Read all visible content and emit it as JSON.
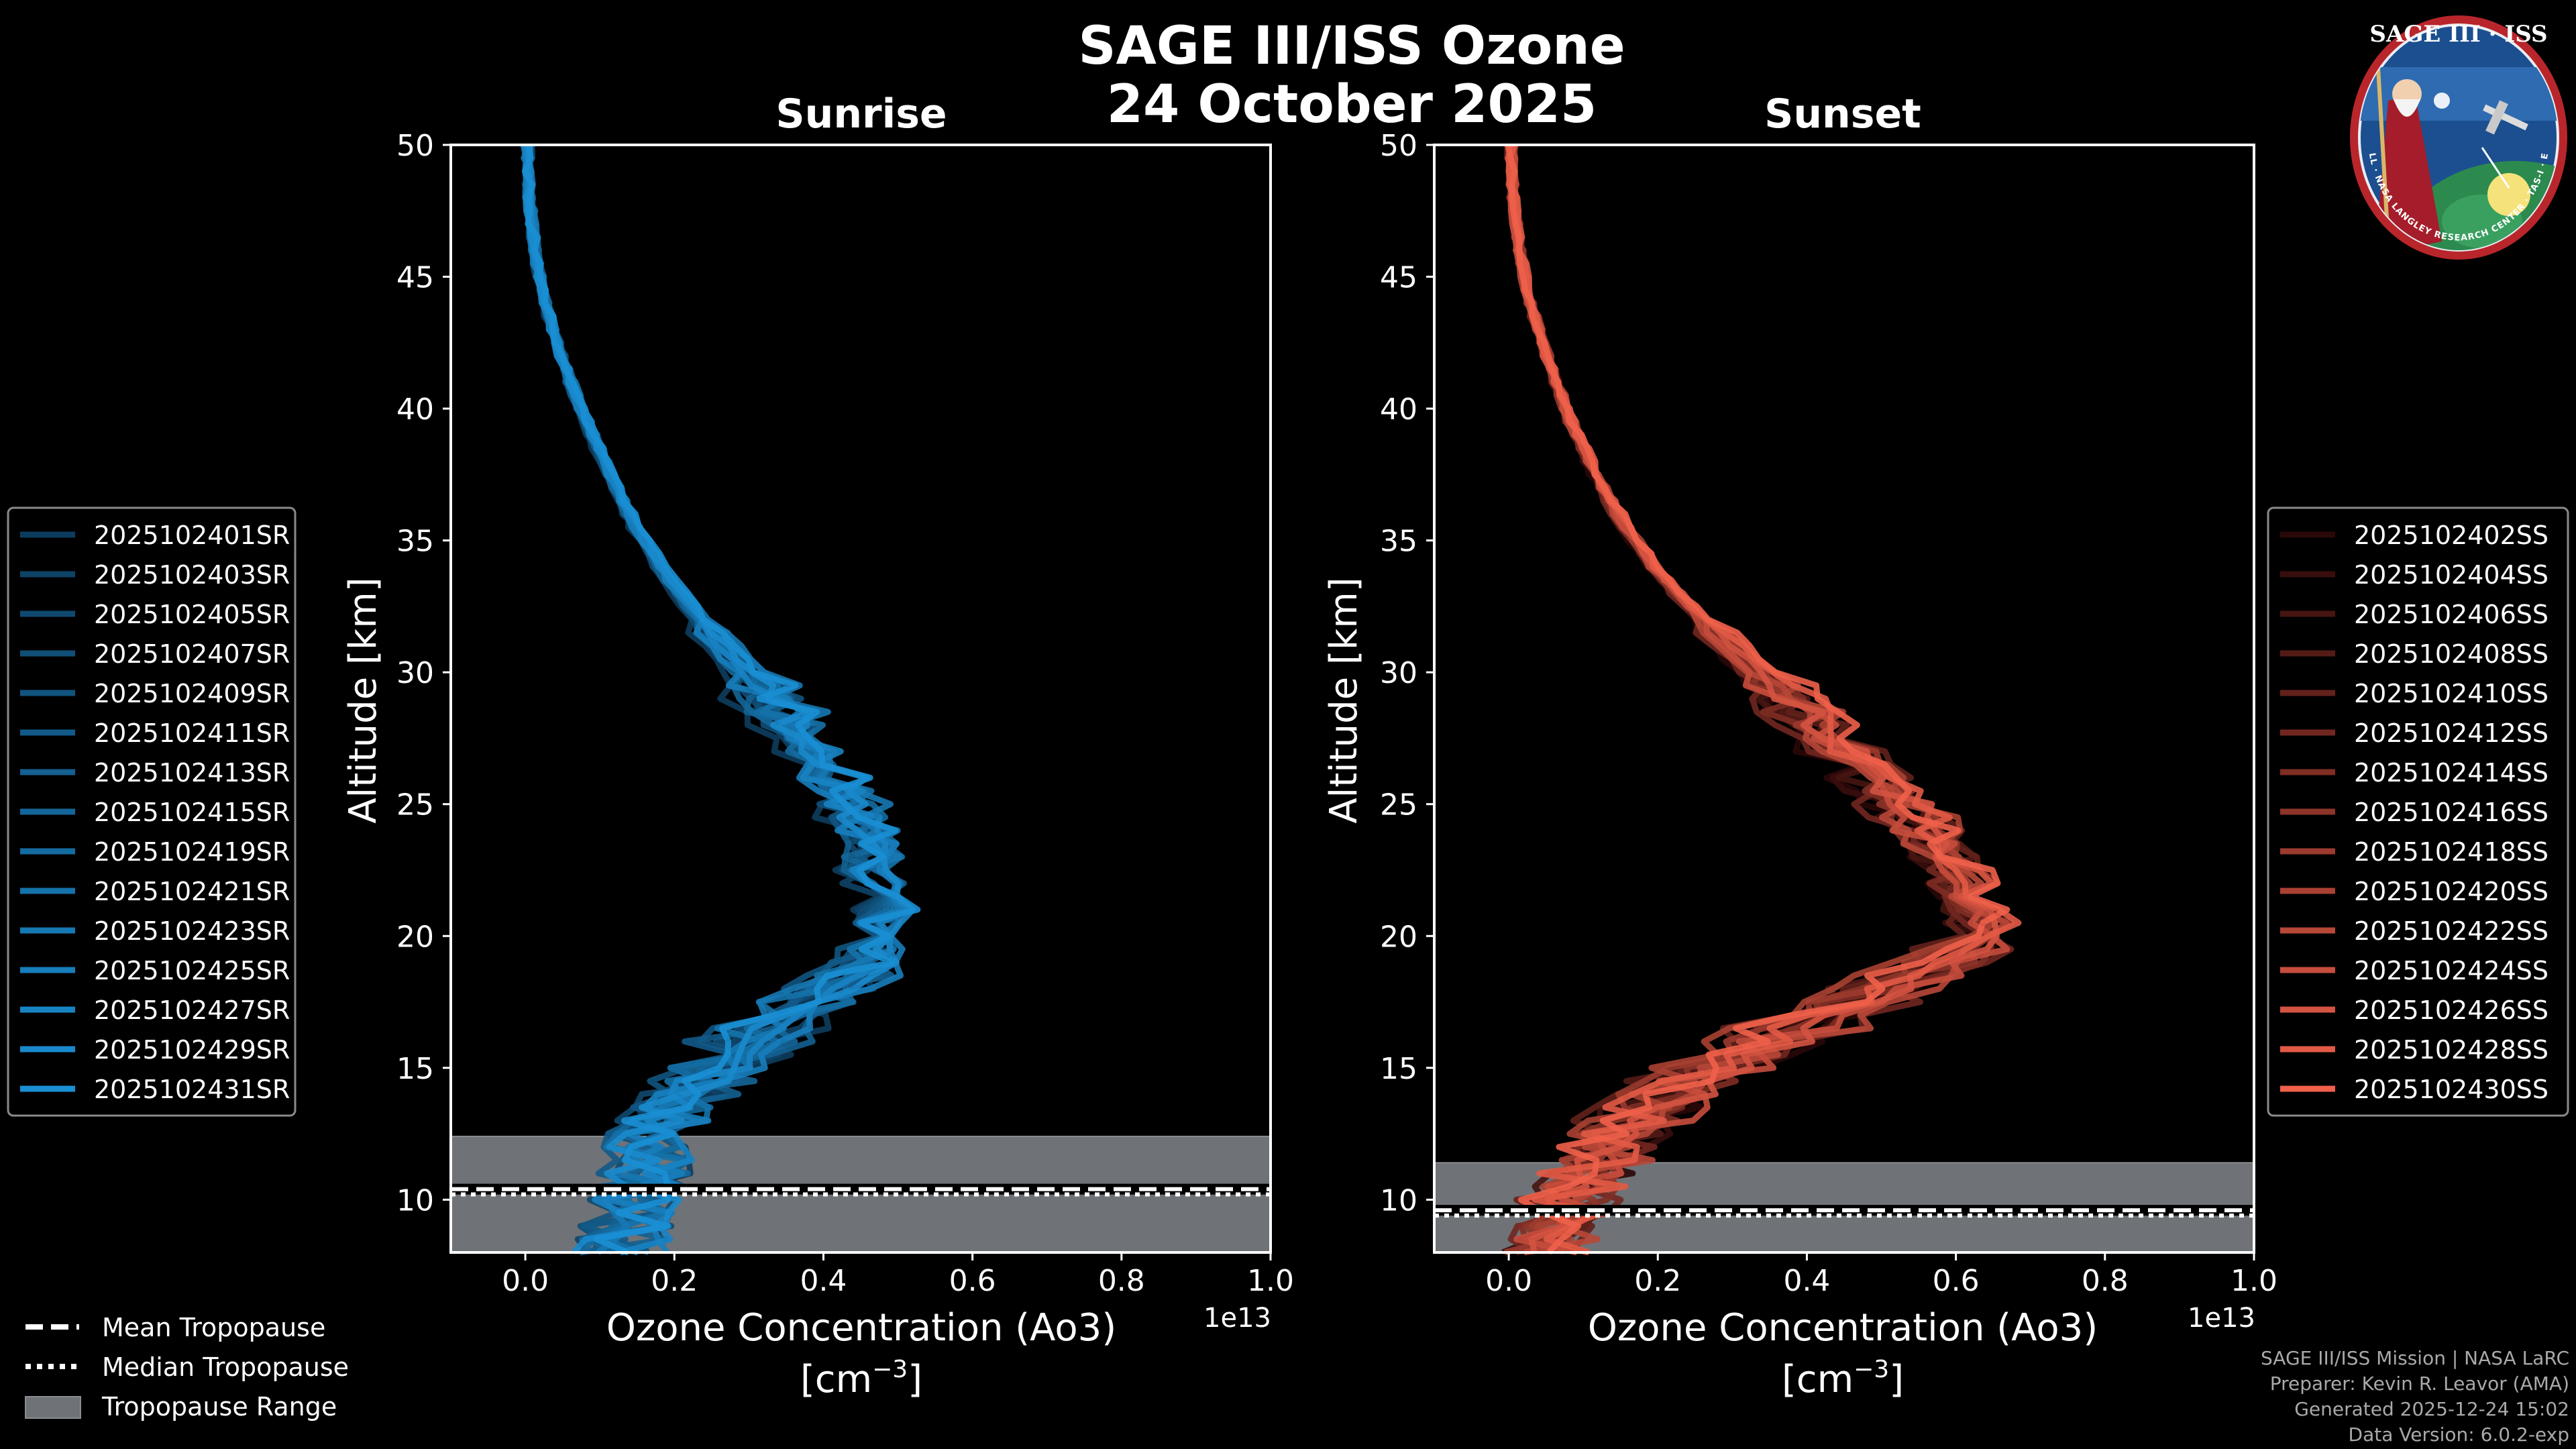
{
  "page": {
    "title_line1": "SAGE III/ISS Ozone",
    "title_line2": "24 October 2025",
    "logo": {
      "top_text": "SAGE III · ISS",
      "ring_text": "BALL · NASA LANGLEY RESEARCH CENTER · TAS-I · ESA",
      "icon": "sage-iii-iss-mission-patch"
    },
    "legend_bottom": [
      "Mean Tropopause",
      "Median Tropopause",
      "Tropopause Range"
    ],
    "credits": [
      "SAGE III/ISS Mission | NASA LaRC",
      "Preparer: Kevin R. Leavor (AMA)",
      "Generated 2025-12-24 15:02",
      "Data Version: 6.0.2-exp"
    ]
  },
  "chart_data": [
    {
      "type": "line",
      "title": "Sunrise",
      "xlabel": "Ozone Concentration (Ao3)",
      "xlabel_units": "[cm^-3]",
      "xunit_text": "[cm",
      "xunit_exp": "−3",
      "xunit_close": "]",
      "ylabel": "Altitude [km]",
      "xlim": [
        -0.1,
        1.0
      ],
      "ylim": [
        8,
        50
      ],
      "x_scale_label": "1e13",
      "xticks": [
        0.0,
        0.2,
        0.4,
        0.6,
        0.8,
        1.0
      ],
      "xtick_labels": [
        "0.0",
        "0.2",
        "0.4",
        "0.6",
        "0.8",
        "1.0"
      ],
      "yticks": [
        10,
        15,
        20,
        25,
        30,
        35,
        40,
        45,
        50
      ],
      "ytick_labels": [
        "10",
        "15",
        "20",
        "25",
        "30",
        "35",
        "40",
        "45",
        "50"
      ],
      "legend_position": "left",
      "series_color_dark": "#0d3d5e",
      "series_color_light": "#1a8fd4",
      "tropopause": {
        "range": [
          8.0,
          12.4
        ],
        "mean": 10.4,
        "median": 10.2,
        "fill": "#6f7276"
      },
      "mean_profile": [
        [
          50,
          0.003
        ],
        [
          48,
          0.005
        ],
        [
          46,
          0.012
        ],
        [
          44,
          0.025
        ],
        [
          42,
          0.045
        ],
        [
          40,
          0.07
        ],
        [
          38,
          0.1
        ],
        [
          36,
          0.13
        ],
        [
          34,
          0.17
        ],
        [
          32,
          0.22
        ],
        [
          30,
          0.28
        ],
        [
          28,
          0.34
        ],
        [
          26,
          0.39
        ],
        [
          24,
          0.43
        ],
        [
          22,
          0.45
        ],
        [
          20,
          0.45
        ],
        [
          19,
          0.43
        ],
        [
          18,
          0.38
        ],
        [
          17,
          0.33
        ],
        [
          16,
          0.28
        ],
        [
          15,
          0.24
        ],
        [
          14,
          0.2
        ],
        [
          13,
          0.17
        ],
        [
          12,
          0.16
        ],
        [
          11,
          0.15
        ],
        [
          10,
          0.14
        ],
        [
          9,
          0.13
        ],
        [
          8,
          0.1
        ]
      ],
      "series": [
        {
          "name": "2025102401SR"
        },
        {
          "name": "2025102403SR"
        },
        {
          "name": "2025102405SR"
        },
        {
          "name": "2025102407SR"
        },
        {
          "name": "2025102409SR"
        },
        {
          "name": "2025102411SR"
        },
        {
          "name": "2025102413SR"
        },
        {
          "name": "2025102415SR"
        },
        {
          "name": "2025102419SR"
        },
        {
          "name": "2025102421SR"
        },
        {
          "name": "2025102423SR"
        },
        {
          "name": "2025102425SR"
        },
        {
          "name": "2025102427SR"
        },
        {
          "name": "2025102429SR"
        },
        {
          "name": "2025102431SR"
        }
      ]
    },
    {
      "type": "line",
      "title": "Sunset",
      "xlabel": "Ozone Concentration (Ao3)",
      "xlabel_units": "[cm^-3]",
      "xunit_text": "[cm",
      "xunit_exp": "−3",
      "xunit_close": "]",
      "ylabel": "Altitude [km]",
      "xlim": [
        -0.1,
        1.0
      ],
      "ylim": [
        8,
        50
      ],
      "x_scale_label": "1e13",
      "xticks": [
        0.0,
        0.2,
        0.4,
        0.6,
        0.8,
        1.0
      ],
      "xtick_labels": [
        "0.0",
        "0.2",
        "0.4",
        "0.6",
        "0.8",
        "1.0"
      ],
      "yticks": [
        10,
        15,
        20,
        25,
        30,
        35,
        40,
        45,
        50
      ],
      "ytick_labels": [
        "10",
        "15",
        "20",
        "25",
        "30",
        "35",
        "40",
        "45",
        "50"
      ],
      "legend_position": "right",
      "series_color_dark": "#2a0808",
      "series_color_light": "#f0604a",
      "tropopause": {
        "range": [
          8.0,
          11.4
        ],
        "mean": 9.6,
        "median": 9.4,
        "fill": "#6f7276"
      },
      "mean_profile": [
        [
          50,
          0.003
        ],
        [
          48,
          0.006
        ],
        [
          46,
          0.013
        ],
        [
          44,
          0.027
        ],
        [
          42,
          0.047
        ],
        [
          40,
          0.07
        ],
        [
          38,
          0.1
        ],
        [
          36,
          0.135
        ],
        [
          34,
          0.18
        ],
        [
          32,
          0.24
        ],
        [
          30,
          0.31
        ],
        [
          28,
          0.38
        ],
        [
          26,
          0.45
        ],
        [
          24,
          0.52
        ],
        [
          22,
          0.57
        ],
        [
          20,
          0.6
        ],
        [
          19,
          0.55
        ],
        [
          18,
          0.47
        ],
        [
          17,
          0.39
        ],
        [
          16,
          0.32
        ],
        [
          15,
          0.25
        ],
        [
          14,
          0.2
        ],
        [
          13,
          0.16
        ],
        [
          12,
          0.13
        ],
        [
          11,
          0.1
        ],
        [
          10,
          0.08
        ],
        [
          9,
          0.06
        ],
        [
          8,
          0.05
        ]
      ],
      "series": [
        {
          "name": "2025102402SS"
        },
        {
          "name": "2025102404SS"
        },
        {
          "name": "2025102406SS"
        },
        {
          "name": "2025102408SS"
        },
        {
          "name": "2025102410SS"
        },
        {
          "name": "2025102412SS"
        },
        {
          "name": "2025102414SS"
        },
        {
          "name": "2025102416SS"
        },
        {
          "name": "2025102418SS"
        },
        {
          "name": "2025102420SS"
        },
        {
          "name": "2025102422SS"
        },
        {
          "name": "2025102424SS"
        },
        {
          "name": "2025102426SS"
        },
        {
          "name": "2025102428SS"
        },
        {
          "name": "2025102430SS"
        }
      ]
    }
  ]
}
